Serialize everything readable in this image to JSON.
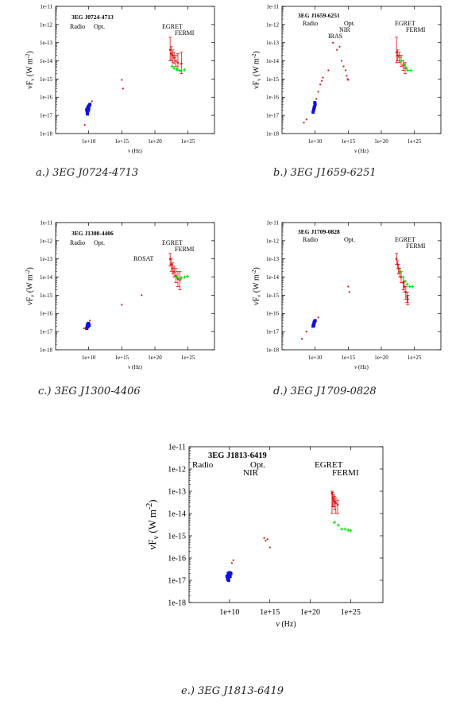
{
  "colors": {
    "radio": "#1010e0",
    "egret": "#e01010",
    "fermi": "#10e010",
    "other": "#e01010",
    "axis": "#000000"
  },
  "common": {
    "ylabel": "νF_ν (W m^-2)",
    "xlabel": "ν (Hz)",
    "yticks": [
      "1e-11",
      "1e-12",
      "1e-13",
      "1e-14",
      "1e-15",
      "1e-16",
      "1e-17",
      "1e-18"
    ],
    "xticks": [
      "1e+10",
      "1e+15",
      "1e+20",
      "1e+25"
    ]
  },
  "captions": {
    "a": "a.) 3EG J0724-4713",
    "b": "b.) 3EG J1659-6251",
    "c": "c.) 3EG J1300-4406",
    "d": "d.) 3EG J1709-0828",
    "e": "e.) 3EG J1813-6419"
  },
  "chart_data": [
    {
      "id": "a",
      "type": "scatter",
      "title": "3EG J0724-4713",
      "xlabel": "ν (Hz)",
      "ylabel": "νF_ν (W m^-2)",
      "log_axes": true,
      "xlim": [
        100000.0,
        1e+29
      ],
      "ylim": [
        1e-18,
        1e-11
      ],
      "band_labels": [
        "Radio",
        "Opt.",
        "EGRET",
        "FERMI"
      ],
      "series": [
        {
          "kind": "radio",
          "points": [
            [
              5000000000.0,
              2e-17
            ],
            [
              6000000000.0,
              1.5e-17
            ],
            [
              7000000000.0,
              2.5e-17
            ],
            [
              8000000000.0,
              1.8e-17
            ],
            [
              9000000000.0,
              3e-17
            ],
            [
              10000000000.0,
              2.2e-17
            ],
            [
              12000000000.0,
              3.5e-17
            ],
            [
              15000000000.0,
              4e-17
            ],
            [
              6500000000.0,
              1.2e-17
            ],
            [
              8500000000.0,
              2.8e-17
            ]
          ]
        },
        {
          "kind": "other",
          "points": [
            [
              2500000000.0,
              3e-18
            ],
            [
              30000000000.0,
              6e-17
            ],
            [
              1000000000000000.0,
              9e-16
            ],
            [
              1500000000000000.0,
              3e-16
            ]
          ]
        },
        {
          "kind": "egret",
          "points": [
            [
              2e+22,
              4e-14,
              2e-13,
              1e-14
            ],
            [
              3e+22,
              2.5e-14,
              6e-14,
              1e-14
            ],
            [
              5e+22,
              2e-14,
              4e-14,
              8e-15
            ],
            [
              8e+22,
              1.5e-14,
              3e-14,
              7e-15
            ],
            [
              1.5e+23,
              1e-14,
              2e-14,
              5e-15
            ],
            [
              3e+23,
              8e-15,
              2.5e-14,
              3e-15
            ],
            [
              1e+24,
              7e-15,
              3e-14,
              2e-15
            ]
          ]
        },
        {
          "kind": "fermi",
          "points": [
            [
              4e+22,
              5e-15
            ],
            [
              8e+22,
              4e-15
            ],
            [
              2e+23,
              3.5e-15
            ],
            [
              5e+23,
              3e-15
            ],
            [
              1e+24,
              2.8e-15
            ],
            [
              3e+24,
              3.2e-15
            ]
          ]
        }
      ]
    },
    {
      "id": "b",
      "type": "scatter",
      "title": "3EG J1659-6251",
      "xlabel": "ν (Hz)",
      "ylabel": "νF_ν (W m^-2)",
      "log_axes": true,
      "xlim": [
        100000.0,
        1e+29
      ],
      "ylim": [
        1e-18,
        1e-11
      ],
      "band_labels": [
        "Radio",
        "Opt.",
        "NIR",
        "IRAS",
        "EGRET",
        "FERMI"
      ],
      "series": [
        {
          "kind": "radio",
          "points": [
            [
              5000000000.0,
              1.5e-17
            ],
            [
              6000000000.0,
              2e-17
            ],
            [
              8000000000.0,
              3e-17
            ],
            [
              10000000000.0,
              4e-17
            ],
            [
              7000000000.0,
              2.5e-17
            ],
            [
              9000000000.0,
              5e-17
            ]
          ]
        },
        {
          "kind": "other",
          "points": [
            [
              200000000.0,
              4e-18
            ],
            [
              500000000.0,
              6e-18
            ],
            [
              15000000000.0,
              8e-17
            ],
            [
              30000000000.0,
              2e-16
            ],
            [
              60000000000.0,
              5e-16
            ],
            [
              100000000000.0,
              8e-16
            ],
            [
              150000000000.0,
              1.2e-15
            ],
            [
              1000000000000.0,
              3e-15
            ],
            [
              5000000000000.0,
              1e-13
            ],
            [
              20000000000000.0,
              4e-14
            ],
            [
              50000000000000.0,
              6e-14
            ],
            [
              100000000000000.0,
              1e-14
            ],
            [
              200000000000000.0,
              5e-15
            ],
            [
              400000000000000.0,
              3e-15
            ],
            [
              600000000000000.0,
              1.5e-15
            ],
            [
              800000000000000.0,
              1e-15
            ],
            [
              1000000000000000.0,
              9e-16
            ]
          ]
        },
        {
          "kind": "egret",
          "points": [
            [
              2e+22,
              3e-14,
              2e-13,
              8e-15
            ],
            [
              3e+22,
              2e-14,
              4e-14,
              1e-14
            ],
            [
              5e+22,
              1.8e-14,
              3e-14,
              8e-15
            ],
            [
              1e+23,
              1e-14,
              2e-14,
              5e-15
            ],
            [
              2e+23,
              6e-15,
              1e-14,
              3e-15
            ],
            [
              4e+23,
              4e-15,
              8e-15,
              2e-15
            ]
          ]
        },
        {
          "kind": "fermi",
          "points": [
            [
              5e+22,
              1.5e-14
            ],
            [
              1e+23,
              1e-14
            ],
            [
              3e+23,
              6e-15
            ],
            [
              6e+23,
              4e-15
            ],
            [
              1e+24,
              3e-15
            ],
            [
              3e+24,
              3e-15
            ]
          ]
        }
      ]
    },
    {
      "id": "c",
      "type": "scatter",
      "title": "3EG J1300-4406",
      "xlabel": "ν (Hz)",
      "ylabel": "νF_ν (W m^-2)",
      "log_axes": true,
      "xlim": [
        100000.0,
        1e+29
      ],
      "ylim": [
        1e-18,
        1e-11
      ],
      "band_labels": [
        "Radio",
        "Opt.",
        "ROSAT",
        "EGRET",
        "FERMI"
      ],
      "series": [
        {
          "kind": "radio",
          "points": [
            [
              5000000000.0,
              1.5e-17
            ],
            [
              6000000000.0,
              2e-17
            ],
            [
              7000000000.0,
              2.5e-17
            ],
            [
              8000000000.0,
              2e-17
            ],
            [
              10000000000.0,
              2.5e-17
            ],
            [
              12000000000.0,
              2.2e-17
            ],
            [
              6500000000.0,
              1.8e-17
            ],
            [
              9000000000.0,
              2.8e-17
            ]
          ]
        },
        {
          "kind": "other",
          "points": [
            [
              2000000000.0,
              1.5e-17
            ],
            [
              15000000000.0,
              4e-17
            ],
            [
              1000000000000000.0,
              3e-16
            ],
            [
              1e+18,
              1e-15
            ]
          ]
        },
        {
          "kind": "egret",
          "points": [
            [
              2e+22,
              1e-13,
              2e-13,
              4e-14
            ],
            [
              3e+22,
              5e-14,
              1e-13,
              2e-14
            ],
            [
              5e+22,
              3e-14,
              6e-14,
              1.5e-14
            ],
            [
              8e+22,
              2e-14,
              4e-14,
              1e-14
            ],
            [
              1.5e+23,
              1.2e-14,
              3e-14,
              5e-15
            ],
            [
              3e+23,
              8e-15,
              2e-14,
              3e-15
            ],
            [
              6e+23,
              7e-15,
              2e-14,
              2e-15
            ]
          ]
        },
        {
          "kind": "fermi",
          "points": [
            [
              2e+23,
              1e-14
            ],
            [
              5e+23,
              8e-15
            ],
            [
              1e+24,
              9e-15
            ],
            [
              3e+24,
              1e-14
            ],
            [
              8e+24,
              1.1e-14
            ]
          ]
        }
      ]
    },
    {
      "id": "d",
      "type": "scatter",
      "title": "3EG J1709-0828",
      "xlabel": "ν (Hz)",
      "ylabel": "νF_ν (W m^-2)",
      "log_axes": true,
      "xlim": [
        100000.0,
        1e+29
      ],
      "ylim": [
        1e-18,
        1e-11
      ],
      "band_labels": [
        "Radio",
        "Opt.",
        "EGRET",
        "FERMI"
      ],
      "series": [
        {
          "kind": "radio",
          "points": [
            [
              5000000000.0,
              2e-17
            ],
            [
              6000000000.0,
              2.5e-17
            ],
            [
              7000000000.0,
              3e-17
            ],
            [
              8000000000.0,
              3.5e-17
            ],
            [
              10000000000.0,
              4e-17
            ],
            [
              6500000000.0,
              2.2e-17
            ]
          ]
        },
        {
          "kind": "other",
          "points": [
            [
              100000000.0,
              4e-18
            ],
            [
              500000000.0,
              1e-17
            ],
            [
              30000000000.0,
              6e-17
            ],
            [
              1000000000000000.0,
              3e-15
            ],
            [
              1500000000000000.0,
              1.5e-15
            ]
          ]
        },
        {
          "kind": "egret",
          "points": [
            [
              2e+22,
              1e-13,
              2e-13,
              5e-14
            ],
            [
              3e+22,
              5e-14,
              8e-14,
              3e-14
            ],
            [
              4e+22,
              3e-14,
              5e-14,
              1.5e-14
            ],
            [
              6e+22,
              2e-14,
              3e-14,
              1e-14
            ],
            [
              1e+23,
              1e-14,
              2e-14,
              5e-15
            ],
            [
              2e+23,
              5e-15,
              1e-14,
              2e-15
            ],
            [
              3e+23,
              3e-15,
              6e-15,
              1.5e-15
            ],
            [
              5e+23,
              1.5e-15,
              3e-15,
              6e-16
            ],
            [
              8e+23,
              8e-16,
              1.5e-15,
              4e-16
            ],
            [
              1e+24,
              6e-16,
              1e-15,
              3e-16
            ]
          ]
        },
        {
          "kind": "fermi",
          "points": [
            [
              8e+22,
              2e-14
            ],
            [
              2e+23,
              1e-14
            ],
            [
              4e+23,
              6e-15
            ],
            [
              8e+23,
              4e-15
            ],
            [
              2e+24,
              3e-15
            ],
            [
              5e+24,
              3e-15
            ]
          ]
        }
      ]
    },
    {
      "id": "e",
      "type": "scatter",
      "title": "3EG J1813-6419",
      "xlabel": "ν (Hz)",
      "ylabel": "νF_ν (W m^-2)",
      "log_axes": true,
      "xlim": [
        100000.0,
        1e+29
      ],
      "ylim": [
        1e-18,
        1e-11
      ],
      "band_labels": [
        "Radio",
        "Opt.",
        "NIR",
        "EGRET",
        "FERMI"
      ],
      "series": [
        {
          "kind": "radio",
          "points": [
            [
              5000000000.0,
              1.5e-17
            ],
            [
              6000000000.0,
              1.2e-17
            ],
            [
              7000000000.0,
              2e-17
            ],
            [
              8000000000.0,
              1e-17
            ],
            [
              9000000000.0,
              1.8e-17
            ],
            [
              10000000000.0,
              2.2e-17
            ],
            [
              12000000000.0,
              1.5e-17
            ],
            [
              15000000000.0,
              2e-17
            ],
            [
              6500000000.0,
              1.1e-17
            ],
            [
              8500000000.0,
              1.4e-17
            ],
            [
              11000000000.0,
              1.9e-17
            ],
            [
              13000000000.0,
              2.1e-17
            ]
          ]
        },
        {
          "kind": "other",
          "points": [
            [
              20000000000.0,
              6e-17
            ],
            [
              30000000000.0,
              8e-17
            ],
            [
              200000000000000.0,
              8e-16
            ],
            [
              300000000000000.0,
              6e-16
            ],
            [
              500000000000000.0,
              7e-16
            ],
            [
              1000000000000000.0,
              3e-16
            ]
          ]
        },
        {
          "kind": "egret",
          "points": [
            [
              5e+22,
              8e-14,
              1e-13,
              1e-14
            ],
            [
              6e+22,
              5e-14,
              9e-14,
              2e-14
            ],
            [
              8e+22,
              4e-14,
              7e-14,
              2e-14
            ],
            [
              1e+23,
              3.5e-14,
              6e-14,
              1.5e-14
            ],
            [
              1.5e+23,
              3e-14,
              5e-14,
              1e-14
            ],
            [
              2.5e+23,
              2.5e-14,
              4e-14,
              1e-14
            ]
          ]
        },
        {
          "kind": "fermi",
          "points": [
            [
              1e+23,
              4e-15
            ],
            [
              3e+23,
              3e-15
            ],
            [
              8e+23,
              2e-15
            ],
            [
              2e+24,
              2e-15
            ],
            [
              5e+24,
              1.8e-15
            ],
            [
              1e+25,
              1.7e-15
            ]
          ]
        }
      ]
    }
  ]
}
